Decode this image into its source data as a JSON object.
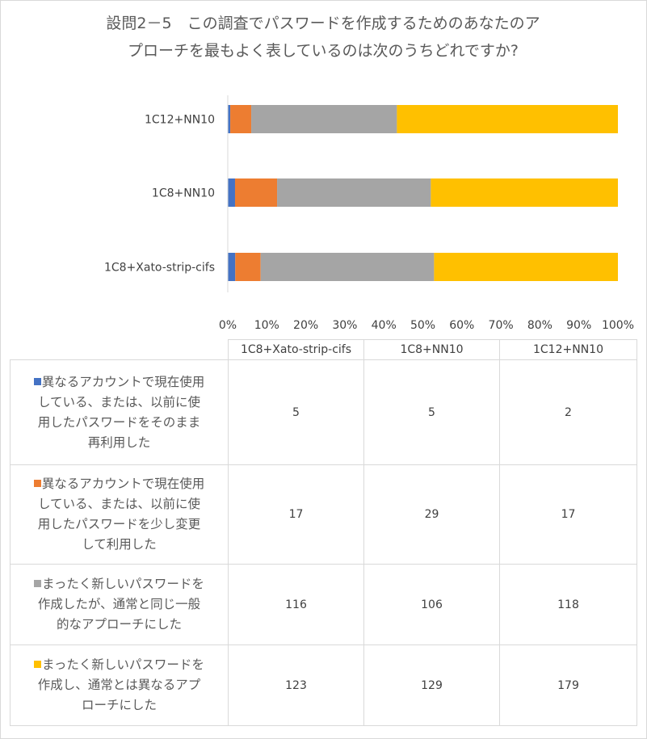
{
  "chart_data": {
    "type": "bar",
    "orientation": "horizontal",
    "stacking": "percent",
    "title": "設問2－5　この調査でパスワードを作成するためのあなたのアプローチを最も良く表しているのは次のうちどれですか?",
    "title_lines": [
      "設問2－5　この調査でパスワードを作成するためのあなたのア",
      "プローチを最もよく表しているのは次のうちどれですか?"
    ],
    "categories": [
      "1C8+Xato-strip-cifs",
      "1C8+NN10",
      "1C12+NN10"
    ],
    "bar_order_top_to_bottom": [
      "1C12+NN10",
      "1C8+NN10",
      "1C8+Xato-strip-cifs"
    ],
    "xticks": [
      "0%",
      "10%",
      "20%",
      "30%",
      "40%",
      "50%",
      "60%",
      "70%",
      "80%",
      "90%",
      "100%"
    ],
    "xlim": [
      0,
      100
    ],
    "grid": false,
    "legend": "table",
    "series": [
      {
        "name_lines": [
          "異なるアカウントで現在使用",
          "している、または、以前に使",
          "用したパスワードをそのまま",
          "再利用した"
        ],
        "color": "#4472c4",
        "values": [
          5,
          5,
          2
        ]
      },
      {
        "name_lines": [
          "異なるアカウントで現在使用",
          "している、または、以前に使",
          "用したパスワードを少し変更",
          "して利用した"
        ],
        "color": "#ed7d31",
        "values": [
          17,
          29,
          17
        ]
      },
      {
        "name_lines": [
          "まったく新しいパスワードを",
          "作成したが、通常と同じ一般",
          "的なアプローチにした"
        ],
        "color": "#a5a5a5",
        "values": [
          116,
          106,
          118
        ]
      },
      {
        "name_lines": [
          "まったく新しいパスワードを",
          "作成し、通常とは異なるアプ",
          "ローチにした"
        ],
        "color": "#ffc000",
        "values": [
          123,
          129,
          179
        ]
      }
    ]
  }
}
